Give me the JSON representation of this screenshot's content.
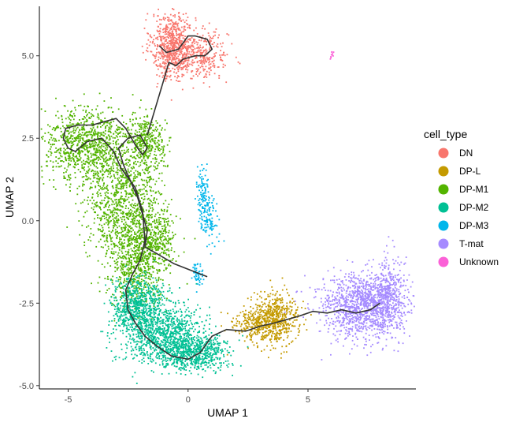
{
  "chart_data": {
    "type": "scatter",
    "xlabel": "UMAP 1",
    "ylabel": "UMAP 2",
    "xlim": [
      -6.2,
      9.5
    ],
    "ylim": [
      -5.1,
      6.5
    ],
    "x_ticks": [
      -5,
      0,
      5
    ],
    "y_ticks": [
      -5.0,
      -2.5,
      0.0,
      2.5,
      5.0
    ],
    "x_tick_labels": [
      "-5",
      "0",
      "5"
    ],
    "y_tick_labels": [
      "-5.0",
      "-2.5",
      "0.0",
      "2.5",
      "5.0"
    ],
    "grid": false,
    "legend": {
      "title": "cell_type",
      "position": "right",
      "entries": [
        {
          "name": "DN",
          "color": "#F8766D"
        },
        {
          "name": "DP-L",
          "color": "#C49A00"
        },
        {
          "name": "DP-M1",
          "color": "#53B400"
        },
        {
          "name": "DP-M2",
          "color": "#00C094"
        },
        {
          "name": "DP-M3",
          "color": "#00B6EB"
        },
        {
          "name": "T-mat",
          "color": "#A58AFF"
        },
        {
          "name": "Unknown",
          "color": "#FB61D7"
        }
      ]
    },
    "clusters": [
      {
        "name": "DN",
        "n": 1000,
        "shapes": [
          [
            -0.6,
            5.3,
            0.45,
            0.5,
            0.75
          ],
          [
            0.7,
            5.0,
            0.5,
            0.35,
            0.25
          ]
        ]
      },
      {
        "name": "DP-L",
        "n": 750,
        "shapes": [
          [
            3.6,
            -3.0,
            0.5,
            0.38,
            0.8
          ],
          [
            2.6,
            -3.1,
            0.45,
            0.2,
            0.2
          ]
        ]
      },
      {
        "name": "DP-M1",
        "n": 3200,
        "shapes": [
          [
            -4.2,
            2.3,
            1.0,
            0.55,
            0.3
          ],
          [
            -2.7,
            0.6,
            0.8,
            0.85,
            0.3
          ],
          [
            -2.2,
            -1.3,
            0.55,
            0.7,
            0.2
          ],
          [
            -1.7,
            2.4,
            0.4,
            0.4,
            0.1
          ],
          [
            -1.3,
            -0.6,
            0.4,
            0.5,
            0.1
          ]
        ]
      },
      {
        "name": "DP-M2",
        "n": 2200,
        "shapes": [
          [
            -2.1,
            -2.6,
            0.55,
            0.45,
            0.3
          ],
          [
            -1.0,
            -3.5,
            0.9,
            0.45,
            0.45
          ],
          [
            0.3,
            -4.0,
            0.7,
            0.25,
            0.25
          ]
        ]
      },
      {
        "name": "DP-M3",
        "n": 260,
        "shapes": [
          [
            0.6,
            0.8,
            0.12,
            0.4,
            0.4
          ],
          [
            0.9,
            0.0,
            0.18,
            0.35,
            0.4
          ],
          [
            0.4,
            -1.6,
            0.1,
            0.2,
            0.2
          ]
        ]
      },
      {
        "name": "T-mat",
        "n": 1500,
        "shapes": [
          [
            7.2,
            -2.6,
            0.9,
            0.5,
            0.75
          ],
          [
            8.3,
            -2.3,
            0.35,
            0.6,
            0.25
          ]
        ]
      },
      {
        "name": "Unknown",
        "n": 10,
        "shapes": [
          [
            6.0,
            5.05,
            0.06,
            0.05,
            1.0
          ]
        ]
      }
    ],
    "trajectory": [
      [
        0.8,
        -1.7
      ],
      [
        -0.6,
        -1.3
      ],
      [
        -1.3,
        -1.0
      ],
      [
        -1.8,
        -0.8
      ],
      [
        -1.7,
        -0.3
      ],
      [
        -1.9,
        0.2
      ],
      [
        -2.1,
        0.7
      ],
      [
        -2.4,
        1.2
      ],
      [
        -2.7,
        1.7
      ],
      [
        -2.9,
        2.2
      ],
      [
        -2.5,
        2.5
      ],
      [
        -2.0,
        2.6
      ],
      [
        -1.7,
        2.2
      ],
      [
        -1.9,
        2.0
      ],
      [
        -2.2,
        2.3
      ],
      [
        -2.6,
        2.8
      ],
      [
        -3.0,
        3.1
      ],
      [
        -3.5,
        3.0
      ],
      [
        -4.0,
        2.9
      ],
      [
        -4.6,
        2.9
      ],
      [
        -5.1,
        2.8
      ],
      [
        -5.2,
        2.5
      ],
      [
        -5.0,
        2.2
      ],
      [
        -4.7,
        2.1
      ],
      [
        -4.2,
        2.4
      ],
      [
        -3.6,
        2.5
      ],
      [
        -3.1,
        2.1
      ],
      [
        -2.8,
        1.6
      ],
      [
        -2.2,
        1.0
      ],
      [
        -1.9,
        0.3
      ],
      [
        -1.8,
        -0.6
      ],
      [
        -2.0,
        -1.2
      ],
      [
        -2.3,
        -1.6
      ],
      [
        -2.6,
        -2.1
      ],
      [
        -2.5,
        -2.7
      ],
      [
        -2.2,
        -3.1
      ],
      [
        -1.8,
        -3.5
      ],
      [
        -1.3,
        -3.8
      ],
      [
        -0.7,
        -4.1
      ],
      [
        0.0,
        -4.2
      ],
      [
        0.5,
        -4.0
      ],
      [
        1.0,
        -3.5
      ],
      [
        1.6,
        -3.3
      ],
      [
        2.4,
        -3.35
      ],
      [
        3.0,
        -3.2
      ],
      [
        3.6,
        -3.1
      ],
      [
        4.1,
        -3.0
      ],
      [
        4.6,
        -2.9
      ],
      [
        5.2,
        -2.75
      ],
      [
        5.8,
        -2.8
      ],
      [
        6.4,
        -2.7
      ],
      [
        7.0,
        -2.8
      ],
      [
        7.6,
        -2.7
      ],
      [
        8.0,
        -2.5
      ]
    ],
    "dn_loop": [
      [
        -1.2,
        5.3
      ],
      [
        -0.9,
        5.1
      ],
      [
        -0.4,
        5.2
      ],
      [
        0.0,
        5.6
      ],
      [
        0.3,
        5.6
      ],
      [
        0.8,
        5.5
      ],
      [
        1.0,
        5.2
      ],
      [
        0.7,
        5.0
      ],
      [
        0.3,
        5.0
      ],
      [
        -0.2,
        4.9
      ],
      [
        -0.5,
        4.7
      ],
      [
        -0.8,
        4.8
      ],
      [
        -1.0,
        4.3
      ],
      [
        -1.7,
        2.6
      ]
    ]
  }
}
